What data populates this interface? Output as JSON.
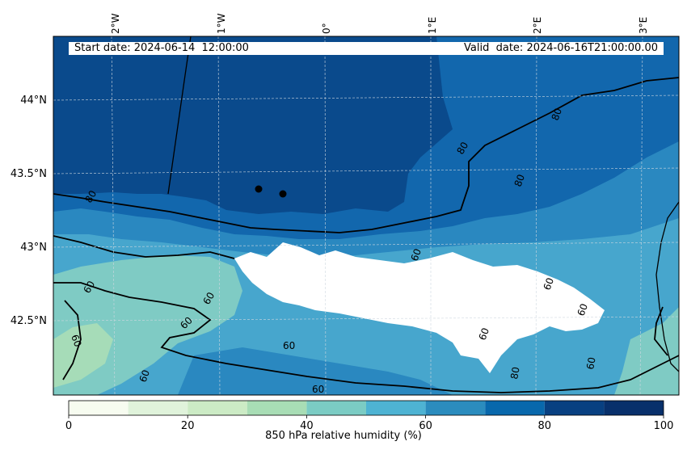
{
  "map": {
    "start_date_label": "Start date: 2024-06-14  12:00:00",
    "valid_date_label": "Valid  date: 2024-06-16T21:00:00.00",
    "lon_labels": [
      "2°W",
      "1°W",
      "0°",
      "1°E",
      "2°E",
      "3°E"
    ],
    "lat_labels": [
      "44°N",
      "43.5°N",
      "43°N",
      "42.5°N"
    ],
    "contour_labels": [
      "80",
      "80",
      "80",
      "60",
      "60",
      "60",
      "60",
      "60",
      "60",
      "60",
      "60",
      "60",
      "80",
      "60",
      "60",
      "60",
      "80"
    ],
    "markers": [
      "station-marker-1",
      "station-marker-2"
    ]
  },
  "colorbar": {
    "label": "850 hPa relative humidity (%)",
    "ticks": [
      "0",
      "20",
      "40",
      "60",
      "80",
      "100"
    ],
    "colors": [
      "#f7fcf0",
      "#e0f3db",
      "#ccebc5",
      "#a8ddb5",
      "#7bccc4",
      "#4eb3d3",
      "#2b8cbe",
      "#0868ac",
      "#084081",
      "#08306b"
    ]
  },
  "colors": {
    "rh_90_100": "#0a4a8c",
    "rh_80_90": "#1267ad",
    "rh_70_80": "#2a88c0",
    "rh_60_70": "#47a6cd",
    "rh_50_60": "#7fcbc4",
    "rh_40_50": "#a6dcb8",
    "masked": "#ffffff"
  }
}
